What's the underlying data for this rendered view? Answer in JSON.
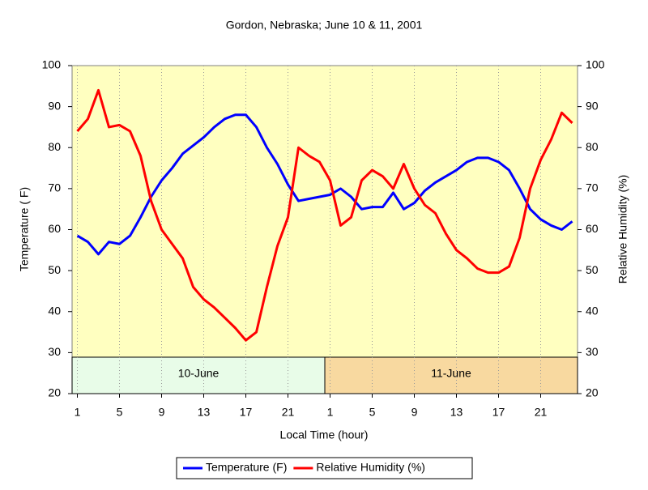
{
  "chart_data": {
    "type": "line",
    "title": "Gordon, Nebraska; June 10 & 11, 2001",
    "x_label": "Local Time (hour)",
    "y_label": "Temperature ( F)",
    "y2_label": "Relative Humidity (%)",
    "categories": [
      "1",
      null,
      null,
      null,
      "5",
      null,
      null,
      null,
      "9",
      null,
      null,
      null,
      "13",
      null,
      null,
      null,
      "17",
      null,
      null,
      null,
      "21",
      null,
      null,
      null,
      "1",
      null,
      null,
      null,
      "5",
      null,
      null,
      null,
      "9",
      null,
      null,
      null,
      "13",
      null,
      null,
      null,
      "17",
      null,
      null,
      null,
      "21",
      null,
      null,
      null
    ],
    "ylim": [
      20,
      100
    ],
    "yticks": [
      20,
      30,
      40,
      50,
      60,
      70,
      80,
      90,
      100
    ],
    "y2lim": [
      20,
      100
    ],
    "y2ticks": [
      20,
      30,
      40,
      50,
      60,
      70,
      80,
      90,
      100
    ],
    "annotations": [
      {
        "label": "10-June",
        "color": "#e8fce8"
      },
      {
        "label": "11-June",
        "color": "#f8d9a0"
      }
    ],
    "series": [
      {
        "name": "Temperature (F)",
        "color": "#0000ff",
        "values": [
          58.5,
          57,
          54,
          57,
          56.5,
          58.5,
          63,
          68,
          72,
          75,
          78.5,
          80.5,
          82.5,
          85,
          87,
          88,
          88,
          85,
          80,
          76,
          71,
          67,
          67.5,
          68,
          68.5,
          70,
          68,
          65,
          65.5,
          65.5,
          69,
          65,
          66.5,
          69.5,
          71.5,
          73,
          74.5,
          76.5,
          77.5,
          77.5,
          76.5,
          74.5,
          70,
          65,
          62.5,
          61,
          60,
          62
        ]
      },
      {
        "name": "Relative Humidity (%)",
        "color": "#ff0000",
        "axis": "y2",
        "values": [
          84,
          87,
          94,
          85,
          85.5,
          84,
          78,
          67,
          60,
          56.5,
          53,
          46,
          43,
          41,
          38.5,
          36,
          33,
          35,
          46,
          56,
          63,
          80,
          78,
          76.5,
          72,
          61,
          63,
          72,
          74.5,
          73,
          70,
          76,
          70,
          66,
          64,
          59,
          55,
          53,
          50.5,
          49.5,
          49.5,
          51,
          58,
          70,
          77,
          82,
          88.5,
          86
        ]
      }
    ]
  }
}
